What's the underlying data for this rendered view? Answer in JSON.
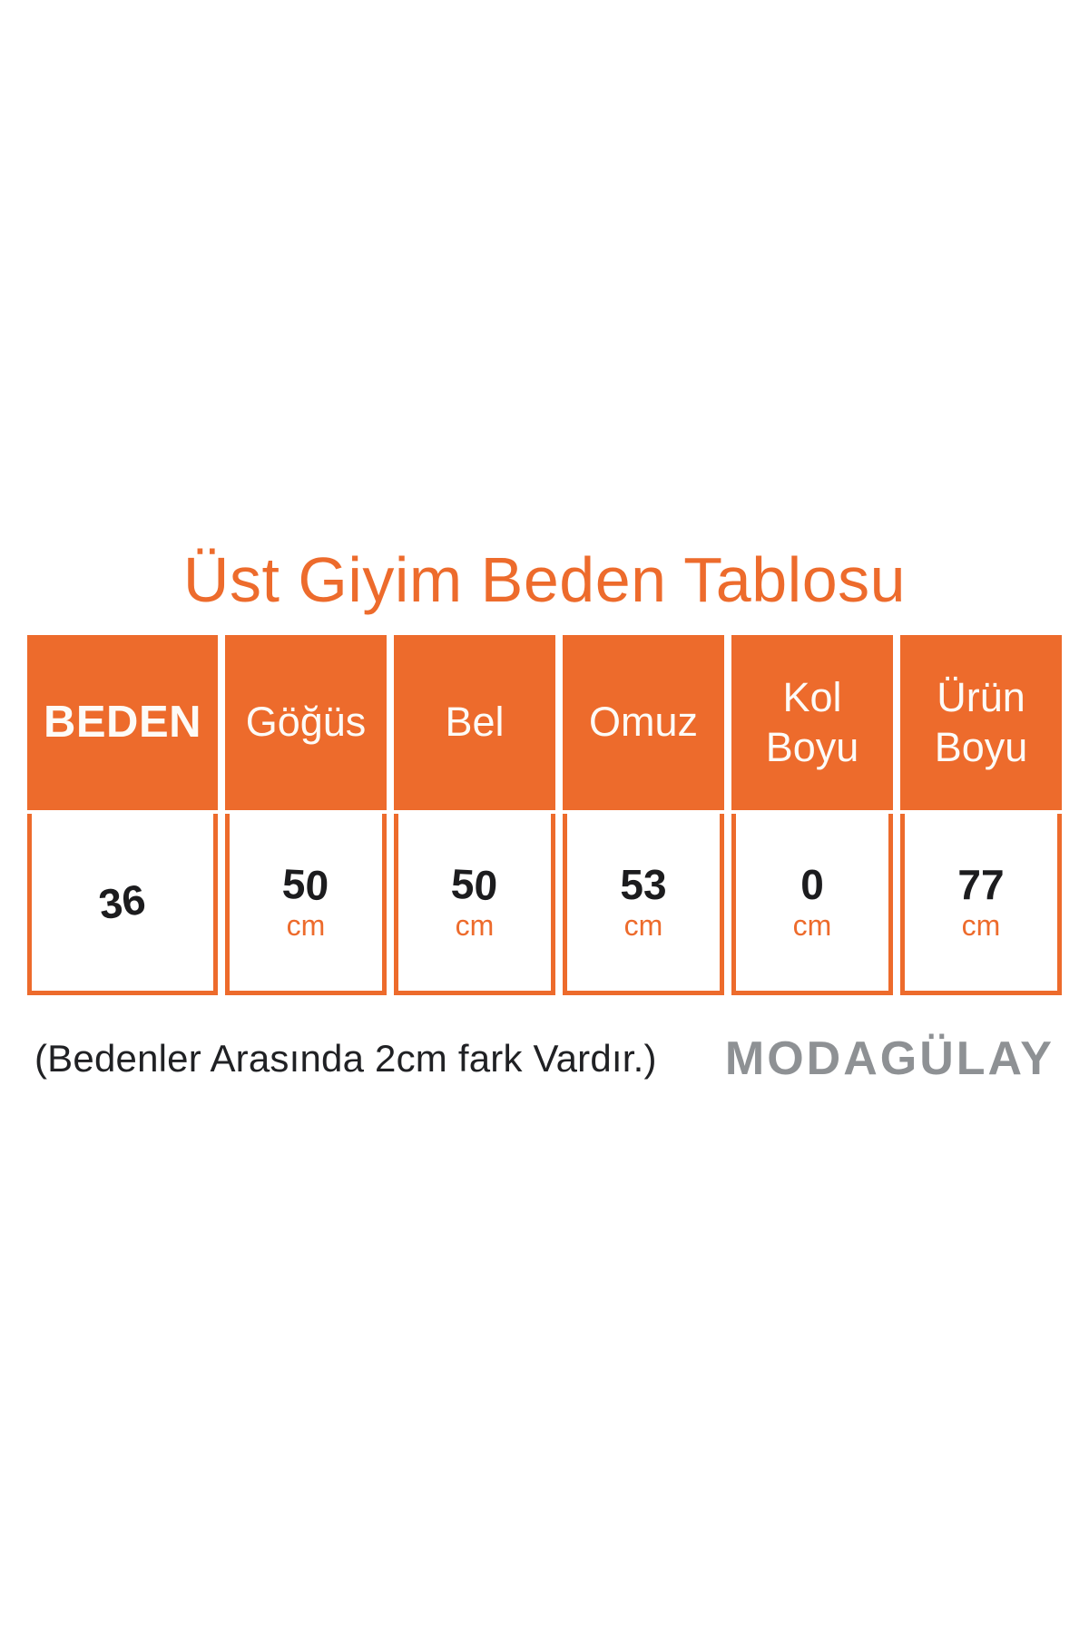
{
  "title": "Üst Giyim Beden Tablosu",
  "colors": {
    "accent_orange": "#ED6B2C",
    "number_black": "#1C1C1E",
    "note_dark": "#202124",
    "brand_gray": "#8E9194"
  },
  "table": {
    "columns": [
      {
        "label": "BEDEN"
      },
      {
        "label": "Göğüs"
      },
      {
        "label": "Bel"
      },
      {
        "label": "Omuz"
      },
      {
        "label": "Kol Boyu"
      },
      {
        "label": "Ürün Boyu"
      }
    ],
    "row": {
      "beden": "36",
      "values": [
        {
          "num": "50",
          "unit": "cm"
        },
        {
          "num": "50",
          "unit": "cm"
        },
        {
          "num": "53",
          "unit": "cm"
        },
        {
          "num": "0",
          "unit": "cm"
        },
        {
          "num": "77",
          "unit": "cm"
        }
      ]
    }
  },
  "footer": {
    "note": "(Bedenler Arasında 2cm fark Vardır.)",
    "brand": "MODAGÜLAY"
  }
}
